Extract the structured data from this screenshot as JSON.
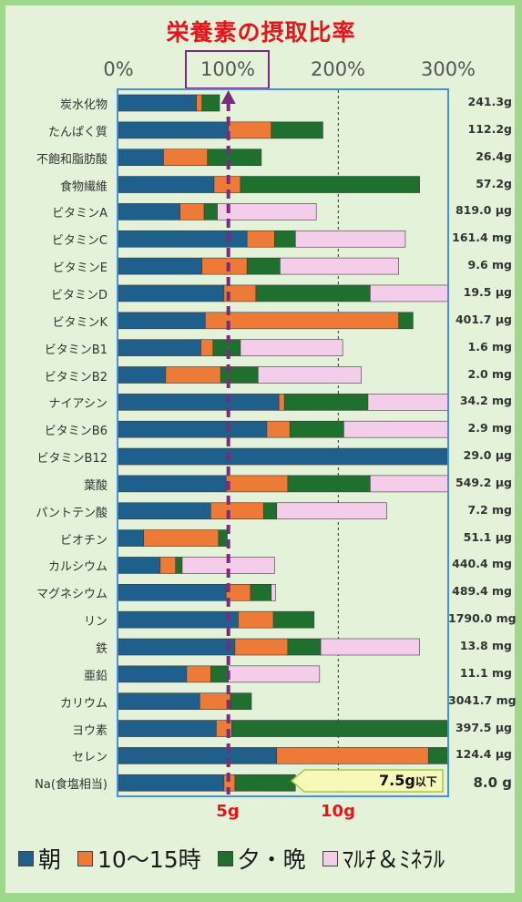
{
  "chart_data": {
    "type": "bar",
    "stacked": true,
    "orientation": "horizontal",
    "title": "栄養素の摂取比率",
    "x_ticks": [
      "0%",
      "100%",
      "200%",
      "300%"
    ],
    "x_range": [
      0,
      300
    ],
    "bottom_ticks": [
      "5g",
      "10g"
    ],
    "highlighted_tick": "100%",
    "legend_position": "bottom",
    "series": [
      {
        "name": "朝",
        "color": "#1f5f8b"
      },
      {
        "name": "10～15時",
        "color": "#ee7a38"
      },
      {
        "name": "夕・晩",
        "color": "#1f6f2f"
      },
      {
        "name": "ﾏﾙﾁ＆ﾐﾈﾗﾙ",
        "color": "#f4cdeb"
      }
    ],
    "rows": [
      {
        "label": "炭水化物",
        "amount": "241.3g",
        "values": [
          71,
          5,
          16,
          0
        ]
      },
      {
        "label": "たんぱく質",
        "amount": "112.2g",
        "values": [
          100,
          39,
          47,
          0
        ]
      },
      {
        "label": "不飽和脂肪酸",
        "amount": "26.4g",
        "values": [
          41,
          40,
          49,
          0
        ]
      },
      {
        "label": "食物繊維",
        "amount": "57.2g",
        "values": [
          87,
          24,
          163,
          0
        ]
      },
      {
        "label": "ビタミンA",
        "amount": "819.0 μg",
        "values": [
          56,
          22,
          12,
          90
        ]
      },
      {
        "label": "ビタミンC",
        "amount": "161.4 mg",
        "values": [
          117,
          25,
          19,
          100
        ]
      },
      {
        "label": "ビタミンE",
        "amount": "9.6 mg",
        "values": [
          76,
          41,
          30,
          108
        ]
      },
      {
        "label": "ビタミンD",
        "amount": "19.5 μg",
        "values": [
          96,
          29,
          104,
          71
        ]
      },
      {
        "label": "ビタミンK",
        "amount": "401.7 μg",
        "values": [
          79,
          176,
          13,
          0
        ]
      },
      {
        "label": "ビタミンB1",
        "amount": "1.6 mg",
        "values": [
          75,
          11,
          25,
          93
        ]
      },
      {
        "label": "ビタミンB2",
        "amount": "2.0 mg",
        "values": [
          43,
          50,
          34,
          94
        ]
      },
      {
        "label": "ナイアシン",
        "amount": "34.2 mg",
        "values": [
          146,
          5,
          76,
          73
        ]
      },
      {
        "label": "ビタミンB6",
        "amount": "2.9 mg",
        "values": [
          135,
          21,
          49,
          95
        ]
      },
      {
        "label": "ビタミンB12",
        "amount": "29.0 μg",
        "values": [
          300,
          0,
          0,
          0
        ]
      },
      {
        "label": "葉酸",
        "amount": "549.2 μg",
        "values": [
          98,
          56,
          75,
          71
        ]
      },
      {
        "label": "パントテン酸",
        "amount": "7.2 mg",
        "values": [
          84,
          48,
          12,
          100
        ]
      },
      {
        "label": "ビオチン",
        "amount": "51.1 μg",
        "values": [
          23,
          68,
          8,
          0
        ]
      },
      {
        "label": "カルシウム",
        "amount": "440.4 mg",
        "values": [
          38,
          14,
          6,
          84
        ]
      },
      {
        "label": "マグネシウム",
        "amount": "489.4 mg",
        "values": [
          98,
          22,
          19,
          4
        ]
      },
      {
        "label": "リン",
        "amount": "1790.0 mg",
        "values": [
          109,
          32,
          37,
          0
        ]
      },
      {
        "label": "鉄",
        "amount": "13.8 mg",
        "values": [
          106,
          48,
          30,
          90
        ]
      },
      {
        "label": "亜鉛",
        "amount": "11.1 mg",
        "values": [
          62,
          22,
          16,
          83
        ]
      },
      {
        "label": "カリウム",
        "amount": "3041.7 mg",
        "values": [
          74,
          28,
          19,
          0
        ]
      },
      {
        "label": "ヨウ素",
        "amount": "397.5 μg",
        "values": [
          89,
          14,
          197,
          0
        ]
      },
      {
        "label": "セレン",
        "amount": "124.4 μg",
        "values": [
          144,
          138,
          18,
          0
        ]
      },
      {
        "label": "Na(食塩相当)",
        "amount": "8.0 g",
        "values": [
          96,
          10,
          55,
          0
        ]
      }
    ],
    "annotation": {
      "value": "7.5g",
      "suffix": "以下"
    }
  }
}
